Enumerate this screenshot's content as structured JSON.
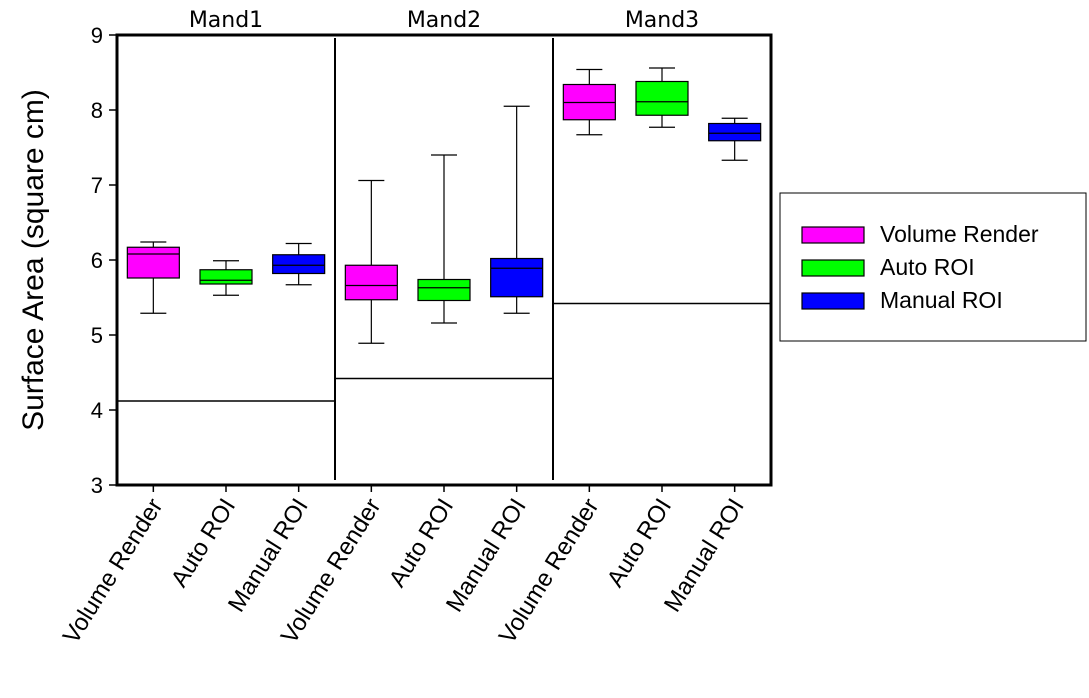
{
  "chart_data": {
    "type": "box",
    "ylabel": "Surface Area (square cm)",
    "xlabel": "",
    "ylim": [
      3,
      9
    ],
    "yticks": [
      3,
      4,
      5,
      6,
      7,
      8,
      9
    ],
    "grid": false,
    "legend_position": "right",
    "groups": [
      {
        "name": "Mand1",
        "reference_value": 4.12
      },
      {
        "name": "Mand2",
        "reference_value": 4.42
      },
      {
        "name": "Mand3",
        "reference_value": 5.42
      }
    ],
    "series": [
      {
        "name": "Volume Render",
        "color": "#ff00ff"
      },
      {
        "name": "Auto ROI",
        "color": "#00ff00"
      },
      {
        "name": "Manual ROI",
        "color": "#0000ff"
      }
    ],
    "boxes": [
      {
        "group": "Mand1",
        "series": "Volume Render",
        "label": "Volume Render",
        "whisker_low": 5.29,
        "q1": 5.76,
        "median": 6.08,
        "q3": 6.17,
        "whisker_high": 6.24
      },
      {
        "group": "Mand1",
        "series": "Auto ROI",
        "label": "Auto ROI",
        "whisker_low": 5.53,
        "q1": 5.68,
        "median": 5.73,
        "q3": 5.87,
        "whisker_high": 5.99
      },
      {
        "group": "Mand1",
        "series": "Manual ROI",
        "label": "Manual ROI",
        "whisker_low": 5.67,
        "q1": 5.82,
        "median": 5.93,
        "q3": 6.07,
        "whisker_high": 6.22
      },
      {
        "group": "Mand2",
        "series": "Volume Render",
        "label": "Volume Render",
        "whisker_low": 4.89,
        "q1": 5.47,
        "median": 5.66,
        "q3": 5.93,
        "whisker_high": 7.06
      },
      {
        "group": "Mand2",
        "series": "Auto ROI",
        "label": "Auto ROI",
        "whisker_low": 5.16,
        "q1": 5.46,
        "median": 5.63,
        "q3": 5.74,
        "whisker_high": 7.4
      },
      {
        "group": "Mand2",
        "series": "Manual ROI",
        "label": "Manual ROI",
        "whisker_low": 5.29,
        "q1": 5.51,
        "median": 5.89,
        "q3": 6.02,
        "whisker_high": 8.05
      },
      {
        "group": "Mand3",
        "series": "Volume Render",
        "label": "Volume Render",
        "whisker_low": 7.67,
        "q1": 7.87,
        "median": 8.1,
        "q3": 8.34,
        "whisker_high": 8.54
      },
      {
        "group": "Mand3",
        "series": "Auto ROI",
        "label": "Auto ROI",
        "whisker_low": 7.77,
        "q1": 7.93,
        "median": 8.11,
        "q3": 8.38,
        "whisker_high": 8.56
      },
      {
        "group": "Mand3",
        "series": "Manual ROI",
        "label": "Manual ROI",
        "whisker_low": 7.33,
        "q1": 7.59,
        "median": 7.69,
        "q3": 7.82,
        "whisker_high": 7.89
      }
    ]
  }
}
